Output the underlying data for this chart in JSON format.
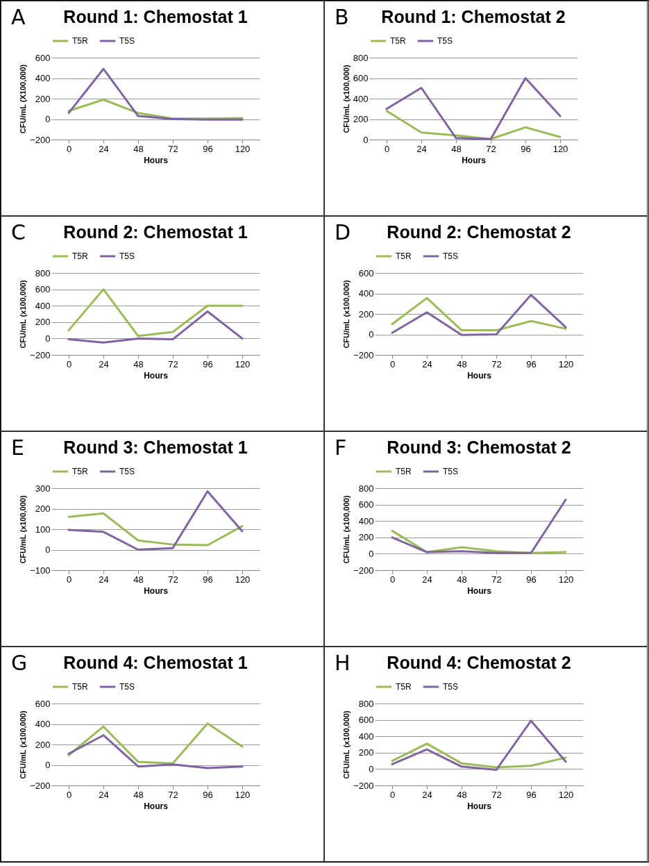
{
  "chart_data": [
    {
      "type": "line",
      "title": "Round 1: Chemostat 1",
      "annotations": [
        "A"
      ],
      "xlabel": "Hours",
      "ylabel": "CFU/mL (X100,000)",
      "categories": [
        "0",
        "24",
        "48",
        "72",
        "96",
        "120"
      ],
      "ylim": [
        -200,
        600
      ],
      "yticks": [
        -200,
        0,
        200,
        400,
        600
      ],
      "grid": "y",
      "legend": "top",
      "series": [
        {
          "name": "T5R",
          "color": "#9bbb59",
          "values": [
            80,
            190,
            60,
            5,
            5,
            10
          ]
        },
        {
          "name": "T5S",
          "color": "#8064a2",
          "values": [
            60,
            490,
            30,
            0,
            -5,
            -5
          ]
        }
      ]
    },
    {
      "type": "line",
      "title": "Round 1: Chemostat 2",
      "annotations": [
        "B"
      ],
      "xlabel": "Hours",
      "ylabel": "CFU/mL (x100,000)",
      "categories": [
        "0",
        "24",
        "48",
        "72",
        "96",
        "120"
      ],
      "ylim": [
        0,
        800
      ],
      "yticks": [
        0,
        200,
        400,
        600,
        800
      ],
      "grid": "y",
      "legend": "top",
      "series": [
        {
          "name": "T5R",
          "color": "#9bbb59",
          "values": [
            280,
            70,
            40,
            5,
            120,
            25
          ]
        },
        {
          "name": "T5S",
          "color": "#8064a2",
          "values": [
            300,
            505,
            15,
            5,
            600,
            230
          ]
        }
      ]
    },
    {
      "type": "line",
      "title": "Round 2: Chemostat 1",
      "annotations": [
        "C"
      ],
      "xlabel": "Hours",
      "ylabel": "CFU/mL (x100,000)",
      "categories": [
        "0",
        "24",
        "48",
        "72",
        "96",
        "120"
      ],
      "ylim": [
        -200,
        800
      ],
      "yticks": [
        -200,
        0,
        200,
        400,
        600,
        800
      ],
      "grid": "y",
      "legend": "top",
      "series": [
        {
          "name": "T5R",
          "color": "#9bbb59",
          "values": [
            100,
            600,
            30,
            80,
            400,
            400
          ]
        },
        {
          "name": "T5S",
          "color": "#8064a2",
          "values": [
            -10,
            -50,
            0,
            -10,
            330,
            0
          ]
        }
      ]
    },
    {
      "type": "line",
      "title": "Round 2: Chemostat 2",
      "annotations": [
        "D"
      ],
      "xlabel": "Hours",
      "ylabel": "CFU/mL (x100,000)",
      "categories": [
        "0",
        "24",
        "48",
        "72",
        "96",
        "120"
      ],
      "ylim": [
        -200,
        600
      ],
      "yticks": [
        -200,
        0,
        200,
        400,
        600
      ],
      "grid": "y",
      "legend": "top",
      "series": [
        {
          "name": "T5R",
          "color": "#9bbb59",
          "values": [
            100,
            355,
            40,
            40,
            130,
            55
          ]
        },
        {
          "name": "T5S",
          "color": "#8064a2",
          "values": [
            15,
            215,
            -5,
            0,
            385,
            70
          ]
        }
      ]
    },
    {
      "type": "line",
      "title": "Round 3: Chemostat 1",
      "annotations": [
        "E"
      ],
      "xlabel": "Hours",
      "ylabel": "CFU/mL (x100,000)",
      "categories": [
        "0",
        "24",
        "48",
        "72",
        "96",
        "120"
      ],
      "ylim": [
        -100,
        300
      ],
      "yticks": [
        -100,
        0,
        100,
        200,
        300
      ],
      "grid": "y",
      "legend": "top",
      "series": [
        {
          "name": "T5R",
          "color": "#9bbb59",
          "values": [
            160,
            177,
            45,
            25,
            22,
            115
          ]
        },
        {
          "name": "T5S",
          "color": "#8064a2",
          "values": [
            97,
            87,
            0,
            8,
            285,
            90
          ]
        }
      ]
    },
    {
      "type": "line",
      "title": "Round 3: Chemostat 2",
      "annotations": [
        "F"
      ],
      "xlabel": "Hours",
      "ylabel": "CFU/mL (x100,000)",
      "categories": [
        "0",
        "24",
        "48",
        "72",
        "96",
        "120"
      ],
      "ylim": [
        -200,
        800
      ],
      "yticks": [
        -200,
        0,
        200,
        400,
        600,
        800
      ],
      "grid": "y",
      "legend": "top",
      "series": [
        {
          "name": "T5R",
          "color": "#9bbb59",
          "values": [
            280,
            20,
            80,
            30,
            10,
            20
          ]
        },
        {
          "name": "T5S",
          "color": "#8064a2",
          "values": [
            200,
            20,
            30,
            10,
            10,
            660
          ]
        }
      ]
    },
    {
      "type": "line",
      "title": "Round 4: Chemostat 1",
      "annotations": [
        "G"
      ],
      "xlabel": "Hours",
      "ylabel": "CFU/mL (x100,000)",
      "categories": [
        "0",
        "24",
        "48",
        "72",
        "96",
        "120"
      ],
      "ylim": [
        -200,
        600
      ],
      "yticks": [
        -200,
        0,
        200,
        400,
        600
      ],
      "grid": "y",
      "legend": "top",
      "series": [
        {
          "name": "T5R",
          "color": "#9bbb59",
          "values": [
            95,
            375,
            30,
            15,
            405,
            180
          ]
        },
        {
          "name": "T5S",
          "color": "#8064a2",
          "values": [
            110,
            290,
            -15,
            5,
            -30,
            -15
          ]
        }
      ]
    },
    {
      "type": "line",
      "title": "Round 4: Chemostat 2",
      "annotations": [
        "H"
      ],
      "xlabel": "Hours",
      "ylabel": "CFU/mL (x100,000)",
      "categories": [
        "0",
        "24",
        "48",
        "72",
        "96",
        "120"
      ],
      "ylim": [
        -200,
        800
      ],
      "yticks": [
        -200,
        0,
        200,
        400,
        600,
        800
      ],
      "grid": "y",
      "legend": "top",
      "series": [
        {
          "name": "T5R",
          "color": "#9bbb59",
          "values": [
            100,
            310,
            70,
            20,
            40,
            140
          ]
        },
        {
          "name": "T5S",
          "color": "#8064a2",
          "values": [
            60,
            240,
            30,
            -10,
            590,
            90
          ]
        }
      ]
    }
  ]
}
